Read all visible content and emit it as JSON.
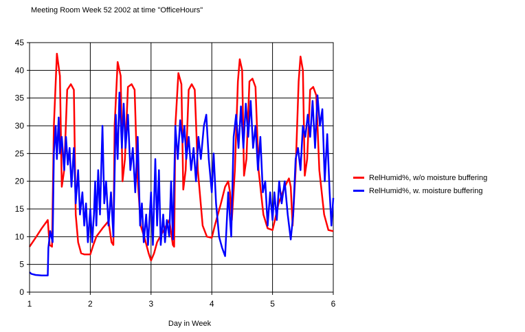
{
  "chart_data": {
    "type": "line",
    "title": "Meeting Room Week 52 2002 at time \"OfficeHours\"",
    "xlabel": "Day in Week",
    "ylabel": "",
    "xlim": [
      1,
      6
    ],
    "ylim": [
      0,
      45
    ],
    "x_ticks": [
      "1",
      "2",
      "3",
      "4",
      "5",
      "6"
    ],
    "y_ticks": [
      "0",
      "5",
      "10",
      "15",
      "20",
      "25",
      "30",
      "35",
      "40",
      "45"
    ],
    "grid": true,
    "legend_position": "right",
    "series": [
      {
        "name": "RelHumid%, w/o moisture buffering",
        "color": "#ff0000",
        "points": [
          [
            1.0,
            8.2
          ],
          [
            1.1,
            9.8
          ],
          [
            1.2,
            11.5
          ],
          [
            1.3,
            13.0
          ],
          [
            1.33,
            8.5
          ],
          [
            1.37,
            8.2
          ],
          [
            1.4,
            30.0
          ],
          [
            1.45,
            43.0
          ],
          [
            1.5,
            39.0
          ],
          [
            1.53,
            19.0
          ],
          [
            1.57,
            22.0
          ],
          [
            1.62,
            36.5
          ],
          [
            1.68,
            37.5
          ],
          [
            1.73,
            36.5
          ],
          [
            1.76,
            14.0
          ],
          [
            1.8,
            9.0
          ],
          [
            1.85,
            7.0
          ],
          [
            1.9,
            6.8
          ],
          [
            2.0,
            6.8
          ],
          [
            2.05,
            8.5
          ],
          [
            2.1,
            10.0
          ],
          [
            2.2,
            11.5
          ],
          [
            2.3,
            12.8
          ],
          [
            2.35,
            9.0
          ],
          [
            2.38,
            8.5
          ],
          [
            2.4,
            30.0
          ],
          [
            2.45,
            41.5
          ],
          [
            2.5,
            39.0
          ],
          [
            2.53,
            20.0
          ],
          [
            2.57,
            24.0
          ],
          [
            2.62,
            37.0
          ],
          [
            2.68,
            37.5
          ],
          [
            2.73,
            36.5
          ],
          [
            2.77,
            22.0
          ],
          [
            2.83,
            12.0
          ],
          [
            2.9,
            9.5
          ],
          [
            2.96,
            7.0
          ],
          [
            3.0,
            5.7
          ],
          [
            3.05,
            7.0
          ],
          [
            3.1,
            9.0
          ],
          [
            3.2,
            11.0
          ],
          [
            3.3,
            13.0
          ],
          [
            3.36,
            8.5
          ],
          [
            3.38,
            8.2
          ],
          [
            3.4,
            30.0
          ],
          [
            3.45,
            39.5
          ],
          [
            3.5,
            37.5
          ],
          [
            3.53,
            18.5
          ],
          [
            3.57,
            22.0
          ],
          [
            3.62,
            36.5
          ],
          [
            3.67,
            37.5
          ],
          [
            3.72,
            36.5
          ],
          [
            3.77,
            22.0
          ],
          [
            3.85,
            12.0
          ],
          [
            3.92,
            10.0
          ],
          [
            4.0,
            9.8
          ],
          [
            4.05,
            12.0
          ],
          [
            4.15,
            16.0
          ],
          [
            4.22,
            19.0
          ],
          [
            4.27,
            20.0
          ],
          [
            4.3,
            18.0
          ],
          [
            4.33,
            13.0
          ],
          [
            4.38,
            22.0
          ],
          [
            4.43,
            38.0
          ],
          [
            4.46,
            42.0
          ],
          [
            4.5,
            40.0
          ],
          [
            4.53,
            21.0
          ],
          [
            4.57,
            24.0
          ],
          [
            4.62,
            38.0
          ],
          [
            4.67,
            38.5
          ],
          [
            4.72,
            37.0
          ],
          [
            4.77,
            22.0
          ],
          [
            4.85,
            14.0
          ],
          [
            4.92,
            11.5
          ],
          [
            5.0,
            11.2
          ],
          [
            5.05,
            13.5
          ],
          [
            5.1,
            16.0
          ],
          [
            5.2,
            19.0
          ],
          [
            5.27,
            20.5
          ],
          [
            5.3,
            19.0
          ],
          [
            5.33,
            12.0
          ],
          [
            5.38,
            22.0
          ],
          [
            5.43,
            38.0
          ],
          [
            5.46,
            42.5
          ],
          [
            5.5,
            40.0
          ],
          [
            5.53,
            21.0
          ],
          [
            5.57,
            24.0
          ],
          [
            5.62,
            36.5
          ],
          [
            5.67,
            37.0
          ],
          [
            5.72,
            35.5
          ],
          [
            5.77,
            22.0
          ],
          [
            5.85,
            14.0
          ],
          [
            5.92,
            11.2
          ],
          [
            6.0,
            11.0
          ]
        ]
      },
      {
        "name": "RelHumid%, w. moisture buffering",
        "color": "#0000ff",
        "points": [
          [
            1.0,
            3.6
          ],
          [
            1.03,
            3.3
          ],
          [
            1.1,
            3.1
          ],
          [
            1.2,
            3.0
          ],
          [
            1.3,
            3.0
          ],
          [
            1.31,
            8.0
          ],
          [
            1.34,
            11.0
          ],
          [
            1.38,
            9.0
          ],
          [
            1.4,
            25.0
          ],
          [
            1.43,
            30.0
          ],
          [
            1.45,
            24.0
          ],
          [
            1.48,
            31.5
          ],
          [
            1.5,
            25.0
          ],
          [
            1.53,
            28.0
          ],
          [
            1.57,
            22.0
          ],
          [
            1.6,
            28.0
          ],
          [
            1.63,
            23.0
          ],
          [
            1.66,
            26.0
          ],
          [
            1.69,
            19.0
          ],
          [
            1.73,
            26.0
          ],
          [
            1.76,
            16.0
          ],
          [
            1.8,
            22.0
          ],
          [
            1.83,
            14.0
          ],
          [
            1.87,
            18.0
          ],
          [
            1.9,
            12.0
          ],
          [
            1.93,
            16.0
          ],
          [
            1.96,
            9.0
          ],
          [
            2.0,
            15.0
          ],
          [
            2.03,
            9.0
          ],
          [
            2.06,
            14.0
          ],
          [
            2.08,
            20.0
          ],
          [
            2.1,
            12.0
          ],
          [
            2.13,
            22.0
          ],
          [
            2.16,
            14.0
          ],
          [
            2.2,
            30.0
          ],
          [
            2.23,
            16.0
          ],
          [
            2.26,
            20.0
          ],
          [
            2.3,
            12.0
          ],
          [
            2.34,
            18.0
          ],
          [
            2.38,
            10.0
          ],
          [
            2.42,
            32.0
          ],
          [
            2.45,
            24.0
          ],
          [
            2.48,
            36.0
          ],
          [
            2.52,
            26.0
          ],
          [
            2.55,
            34.0
          ],
          [
            2.58,
            26.0
          ],
          [
            2.62,
            32.0
          ],
          [
            2.66,
            22.0
          ],
          [
            2.7,
            26.0
          ],
          [
            2.74,
            18.0
          ],
          [
            2.78,
            28.0
          ],
          [
            2.82,
            12.0
          ],
          [
            2.85,
            16.0
          ],
          [
            2.88,
            9.0
          ],
          [
            2.92,
            14.0
          ],
          [
            2.95,
            8.5
          ],
          [
            3.0,
            18.0
          ],
          [
            3.03,
            8.5
          ],
          [
            3.07,
            24.0
          ],
          [
            3.1,
            12.0
          ],
          [
            3.13,
            22.0
          ],
          [
            3.16,
            8.5
          ],
          [
            3.2,
            14.0
          ],
          [
            3.23,
            9.0
          ],
          [
            3.26,
            13.0
          ],
          [
            3.3,
            10.0
          ],
          [
            3.33,
            20.0
          ],
          [
            3.36,
            9.5
          ],
          [
            3.4,
            30.0
          ],
          [
            3.44,
            24.0
          ],
          [
            3.48,
            31.0
          ],
          [
            3.52,
            27.0
          ],
          [
            3.55,
            30.0
          ],
          [
            3.58,
            24.0
          ],
          [
            3.62,
            28.0
          ],
          [
            3.66,
            22.0
          ],
          [
            3.7,
            26.0
          ],
          [
            3.74,
            20.0
          ],
          [
            3.78,
            28.0
          ],
          [
            3.82,
            24.0
          ],
          [
            3.87,
            30.0
          ],
          [
            3.91,
            32.0
          ],
          [
            3.95,
            24.0
          ],
          [
            4.0,
            18.0
          ],
          [
            4.03,
            25.0
          ],
          [
            4.07,
            16.0
          ],
          [
            4.12,
            10.0
          ],
          [
            4.17,
            8.0
          ],
          [
            4.22,
            6.5
          ],
          [
            4.27,
            18.0
          ],
          [
            4.32,
            10.0
          ],
          [
            4.36,
            28.0
          ],
          [
            4.4,
            32.0
          ],
          [
            4.44,
            26.0
          ],
          [
            4.48,
            33.5
          ],
          [
            4.52,
            26.0
          ],
          [
            4.56,
            34.0
          ],
          [
            4.6,
            28.0
          ],
          [
            4.64,
            34.5
          ],
          [
            4.68,
            26.0
          ],
          [
            4.72,
            30.0
          ],
          [
            4.76,
            22.0
          ],
          [
            4.8,
            28.0
          ],
          [
            4.84,
            18.0
          ],
          [
            4.88,
            20.0
          ],
          [
            4.92,
            12.0
          ],
          [
            4.96,
            18.0
          ],
          [
            5.0,
            13.0
          ],
          [
            5.03,
            18.0
          ],
          [
            5.07,
            13.0
          ],
          [
            5.11,
            20.0
          ],
          [
            5.15,
            16.0
          ],
          [
            5.2,
            20.0
          ],
          [
            5.25,
            14.0
          ],
          [
            5.3,
            9.5
          ],
          [
            5.34,
            14.0
          ],
          [
            5.38,
            24.0
          ],
          [
            5.42,
            26.0
          ],
          [
            5.46,
            22.0
          ],
          [
            5.5,
            30.0
          ],
          [
            5.54,
            28.0
          ],
          [
            5.58,
            32.0
          ],
          [
            5.62,
            28.0
          ],
          [
            5.66,
            34.5
          ],
          [
            5.7,
            26.0
          ],
          [
            5.74,
            35.5
          ],
          [
            5.78,
            30.0
          ],
          [
            5.82,
            33.0
          ],
          [
            5.86,
            20.0
          ],
          [
            5.9,
            28.5
          ],
          [
            5.94,
            18.0
          ],
          [
            5.97,
            12.0
          ],
          [
            6.0,
            17.0
          ]
        ]
      }
    ]
  }
}
